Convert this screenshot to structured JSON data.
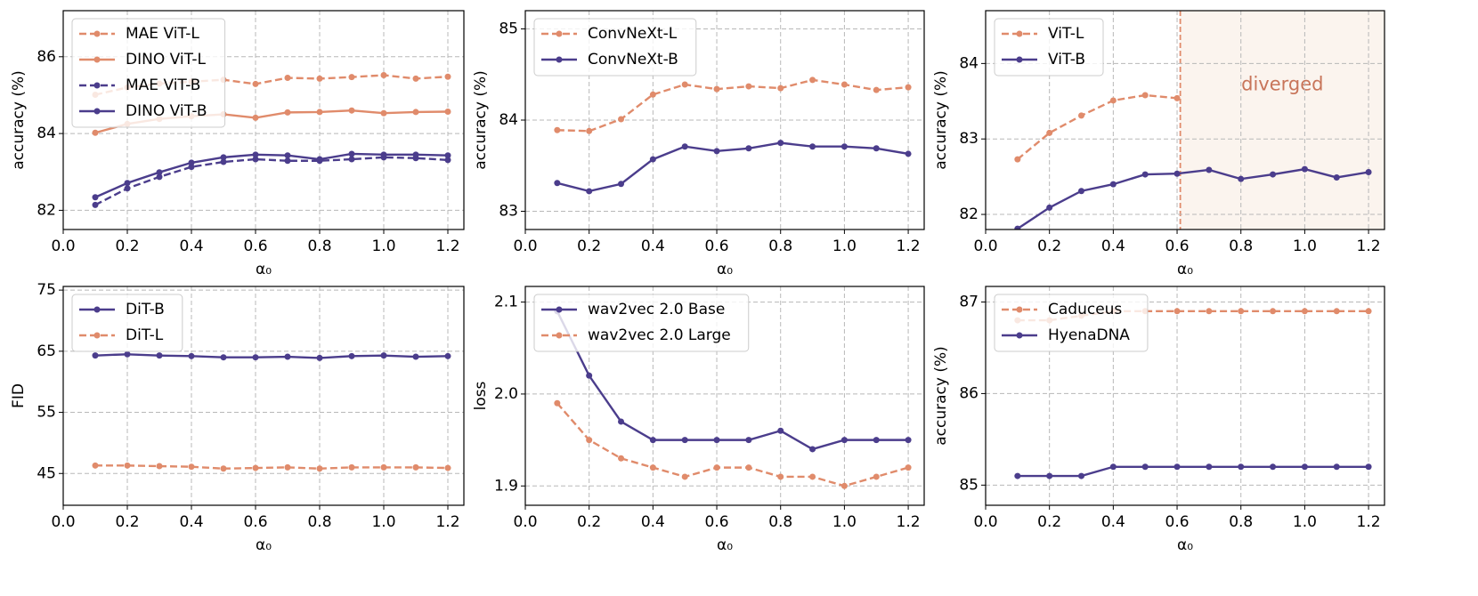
{
  "chart_data": [
    {
      "type": "line",
      "ylabel": "accuracy (%)",
      "xlabel": "α₀",
      "legend": "upper left",
      "grid": true,
      "xlim": [
        0,
        1.25
      ],
      "ylim": [
        81.5,
        87.2
      ],
      "xticks": [
        {
          "value": 0,
          "label": "0.0"
        },
        0.2,
        0.4,
        0.6,
        0.8,
        {
          "value": 1,
          "label": "1.0"
        },
        1.2
      ],
      "yticks": [
        82,
        84,
        86
      ],
      "x": [
        0.1,
        0.2,
        0.3,
        0.4,
        0.5,
        0.6,
        0.7,
        0.8,
        0.9,
        1,
        1.1,
        1.2
      ],
      "series": [
        {
          "name": "MAE ViT-L",
          "color": "#e08b6b",
          "dashed": true,
          "values": [
            85.01,
            85.2,
            85.3,
            85.35,
            85.4,
            85.29,
            85.45,
            85.43,
            85.47,
            85.52,
            85.43,
            85.48
          ]
        },
        {
          "name": "DINO ViT-L",
          "color": "#e08b6b",
          "dashed": false,
          "values": [
            84.02,
            84.25,
            84.38,
            84.45,
            84.5,
            84.41,
            84.55,
            84.56,
            84.6,
            84.53,
            84.56,
            84.57
          ]
        },
        {
          "name": "MAE ViT-B",
          "color": "#4b3d8c",
          "dashed": true,
          "values": [
            82.14,
            82.57,
            82.87,
            83.13,
            83.26,
            83.33,
            83.29,
            83.29,
            83.33,
            83.38,
            83.36,
            83.31
          ]
        },
        {
          "name": "DINO ViT-B",
          "color": "#4b3d8c",
          "dashed": false,
          "values": [
            82.34,
            82.71,
            82.99,
            83.24,
            83.38,
            83.45,
            83.43,
            83.33,
            83.47,
            83.45,
            83.45,
            83.43
          ]
        }
      ]
    },
    {
      "type": "line",
      "ylabel": "accuracy (%)",
      "xlabel": "α₀",
      "legend": "upper left",
      "grid": true,
      "xlim": [
        0,
        1.25
      ],
      "ylim": [
        82.8,
        85.2
      ],
      "xticks": [
        {
          "value": 0,
          "label": "0.0"
        },
        0.2,
        0.4,
        0.6,
        0.8,
        {
          "value": 1,
          "label": "1.0"
        },
        1.2
      ],
      "yticks": [
        83,
        84,
        85
      ],
      "x": [
        0.1,
        0.2,
        0.3,
        0.4,
        0.5,
        0.6,
        0.7,
        0.8,
        0.9,
        1,
        1.1,
        1.2
      ],
      "series": [
        {
          "name": "ConvNeXt-L",
          "color": "#e08b6b",
          "dashed": true,
          "values": [
            83.89,
            83.88,
            84.01,
            84.28,
            84.39,
            84.34,
            84.37,
            84.35,
            84.44,
            84.39,
            84.33,
            84.36
          ]
        },
        {
          "name": "ConvNeXt-B",
          "color": "#4b3d8c",
          "dashed": false,
          "values": [
            83.31,
            83.22,
            83.3,
            83.57,
            83.71,
            83.66,
            83.69,
            83.75,
            83.71,
            83.71,
            83.69,
            83.63
          ]
        }
      ]
    },
    {
      "type": "line",
      "ylabel": "accuracy (%)",
      "xlabel": "α₀",
      "legend": "upper left",
      "grid": true,
      "xlim": [
        0,
        1.25
      ],
      "ylim": [
        81.8,
        84.7
      ],
      "xticks": [
        {
          "value": 0,
          "label": "0.0"
        },
        0.2,
        0.4,
        0.6,
        0.8,
        {
          "value": 1,
          "label": "1.0"
        },
        1.2
      ],
      "yticks": [
        82,
        83,
        84
      ],
      "x": [
        0.1,
        0.2,
        0.3,
        0.4,
        0.5,
        0.6,
        0.7,
        0.8,
        0.9,
        1,
        1.1,
        1.2
      ],
      "span_start": 0.61,
      "annotation": "diverged",
      "series": [
        {
          "name": "ViT-L",
          "color": "#e08b6b",
          "dashed": true,
          "values": [
            82.73,
            83.08,
            83.31,
            83.51,
            83.58,
            83.54,
            null,
            null,
            null,
            null,
            null,
            null
          ]
        },
        {
          "name": "ViT-B",
          "color": "#4b3d8c",
          "dashed": false,
          "values": [
            81.81,
            82.09,
            82.31,
            82.4,
            82.53,
            82.54,
            82.59,
            82.47,
            82.53,
            82.6,
            82.49,
            82.56
          ]
        }
      ]
    },
    {
      "type": "line",
      "ylabel": "FID",
      "xlabel": "α₀",
      "legend": "upper left",
      "grid": true,
      "xlim": [
        0,
        1.25
      ],
      "ylim": [
        39.8,
        75.6
      ],
      "xticks": [
        {
          "value": 0,
          "label": "0.0"
        },
        0.2,
        0.4,
        0.6,
        0.8,
        {
          "value": 1,
          "label": "1.0"
        },
        1.2
      ],
      "yticks": [
        45,
        55,
        65,
        75
      ],
      "x": [
        0.1,
        0.2,
        0.3,
        0.4,
        0.5,
        0.6,
        0.7,
        0.8,
        0.9,
        1,
        1.1,
        1.2
      ],
      "series": [
        {
          "name": "DiT-B",
          "color": "#4b3d8c",
          "dashed": false,
          "values": [
            64.3,
            64.5,
            64.3,
            64.2,
            64.0,
            64.0,
            64.1,
            63.9,
            64.2,
            64.3,
            64.1,
            64.2
          ]
        },
        {
          "name": "DiT-L",
          "color": "#e08b6b",
          "dashed": true,
          "values": [
            46.3,
            46.3,
            46.2,
            46.1,
            45.8,
            45.9,
            46.0,
            45.8,
            46.0,
            46.0,
            46.0,
            45.9
          ]
        }
      ]
    },
    {
      "type": "line",
      "ylabel": "loss",
      "xlabel": "α₀",
      "legend": "upper left",
      "grid": true,
      "xlim": [
        0,
        1.25
      ],
      "ylim": [
        1.879,
        2.117
      ],
      "xticks": [
        {
          "value": 0,
          "label": "0.0"
        },
        0.2,
        0.4,
        0.6,
        0.8,
        {
          "value": 1,
          "label": "1.0"
        },
        1.2
      ],
      "yticks": [
        1.9,
        {
          "value": 2,
          "label": "2.0"
        },
        2.1
      ],
      "x": [
        0.1,
        0.2,
        0.3,
        0.4,
        0.5,
        0.6,
        0.7,
        0.8,
        0.9,
        1,
        1.1,
        1.2
      ],
      "series": [
        {
          "name": "wav2vec 2.0 Base",
          "color": "#4b3d8c",
          "dashed": false,
          "values": [
            2.09,
            2.02,
            1.97,
            1.95,
            1.95,
            1.95,
            1.95,
            1.96,
            1.94,
            1.95,
            1.95,
            1.95
          ]
        },
        {
          "name": "wav2vec 2.0 Large",
          "color": "#e08b6b",
          "dashed": true,
          "values": [
            1.99,
            1.95,
            1.93,
            1.92,
            1.91,
            1.92,
            1.92,
            1.91,
            1.91,
            1.9,
            1.91,
            1.92
          ]
        }
      ]
    },
    {
      "type": "line",
      "ylabel": "accuracy (%)",
      "xlabel": "α₀",
      "legend": "upper left",
      "grid": true,
      "xlim": [
        0,
        1.25
      ],
      "ylim": [
        84.78,
        87.17
      ],
      "xticks": [
        {
          "value": 0,
          "label": "0.0"
        },
        0.2,
        0.4,
        0.6,
        0.8,
        {
          "value": 1,
          "label": "1.0"
        },
        1.2
      ],
      "yticks": [
        85,
        86,
        87
      ],
      "x": [
        0.1,
        0.2,
        0.3,
        0.4,
        0.5,
        0.6,
        0.7,
        0.8,
        0.9,
        1,
        1.1,
        1.2
      ],
      "series": [
        {
          "name": "Caduceus",
          "color": "#e08b6b",
          "dashed": true,
          "values": [
            86.8,
            86.8,
            86.85,
            86.9,
            86.9,
            86.9,
            86.9,
            86.9,
            86.9,
            86.9,
            86.9,
            86.9
          ]
        },
        {
          "name": "HyenaDNA",
          "color": "#4b3d8c",
          "dashed": false,
          "values": [
            85.1,
            85.1,
            85.1,
            85.2,
            85.2,
            85.2,
            85.2,
            85.2,
            85.2,
            85.2,
            85.2,
            85.2
          ]
        }
      ]
    }
  ]
}
